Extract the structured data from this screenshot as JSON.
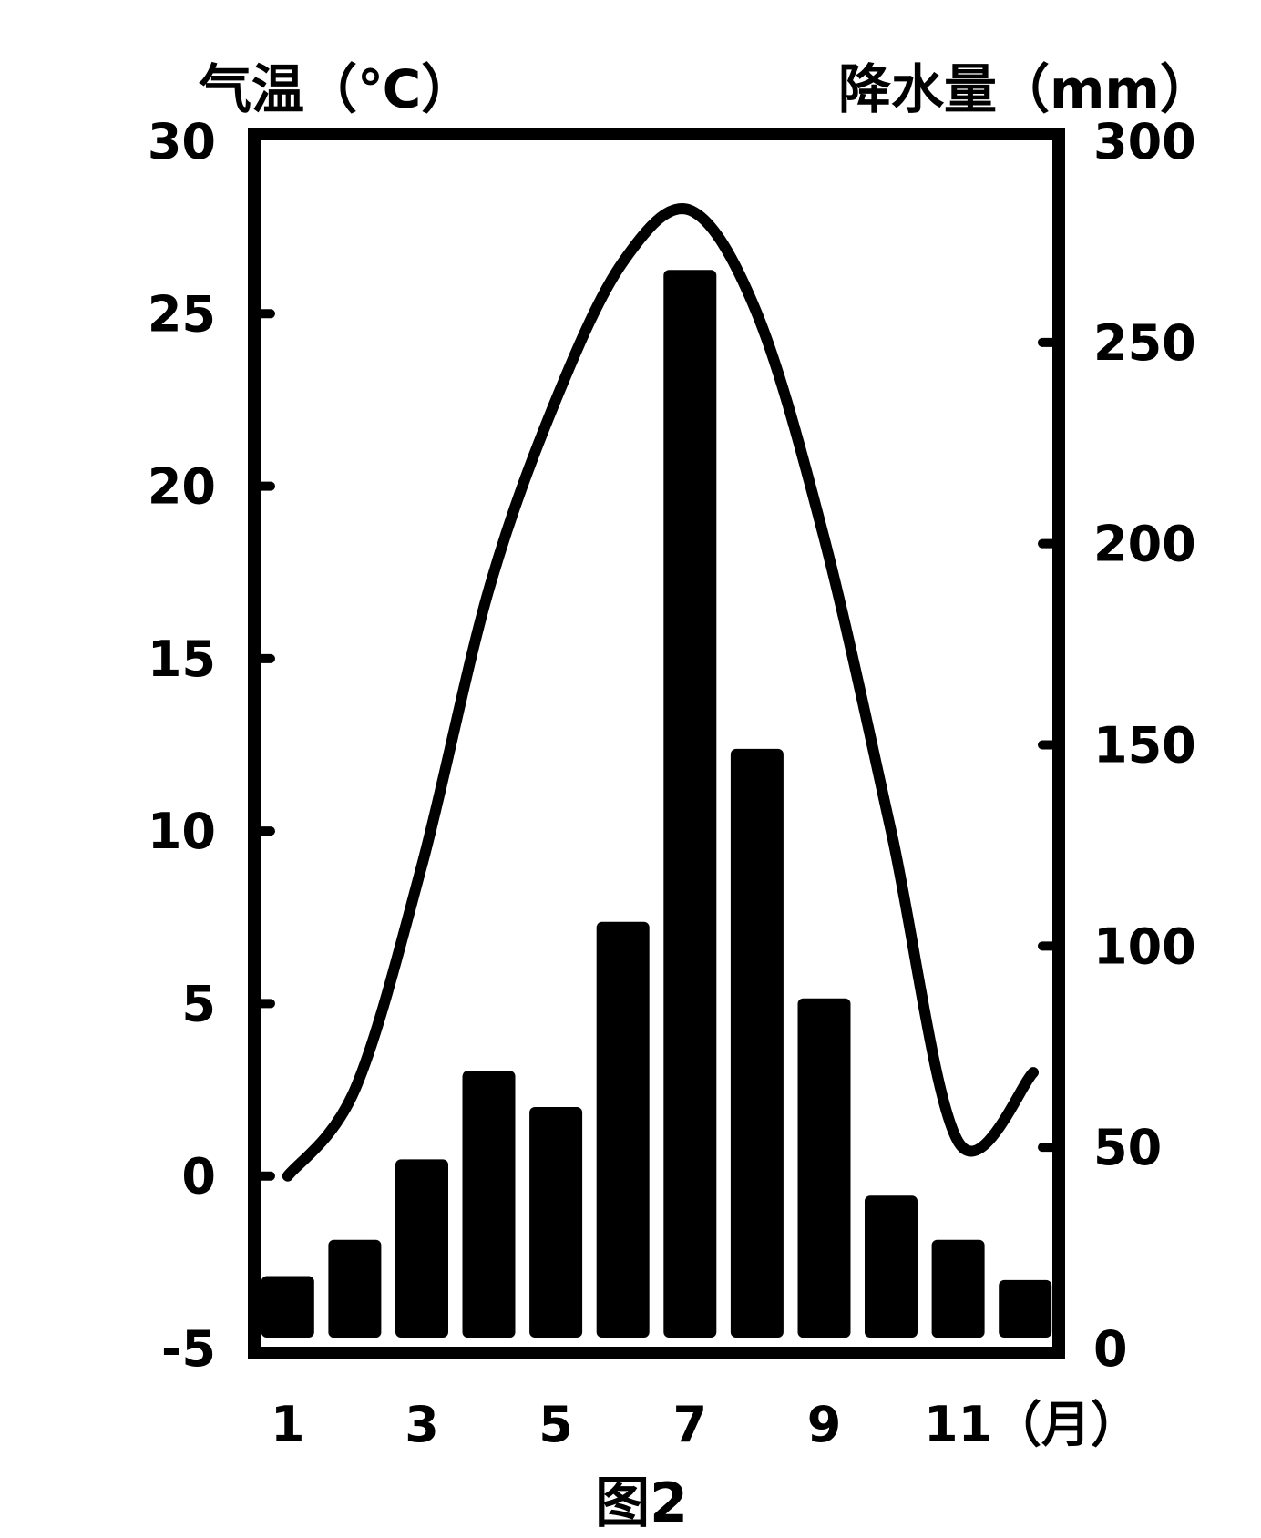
{
  "chart_data": {
    "type": "bar",
    "caption": "图2",
    "y_left_label": "气温（℃）",
    "y_right_label": "降水量（mm）",
    "x_unit_label": "（月）",
    "months": [
      1,
      2,
      3,
      4,
      5,
      6,
      7,
      8,
      9,
      10,
      11,
      12
    ],
    "x_tick_labels": [
      "1",
      "3",
      "5",
      "7",
      "9",
      "11"
    ],
    "x_tick_months": [
      1,
      3,
      5,
      7,
      9,
      11
    ],
    "y_left_ticks": [
      "30",
      "25",
      "20",
      "15",
      "10",
      "5",
      "0",
      "-5"
    ],
    "y_left_tick_values": [
      30,
      25,
      20,
      15,
      10,
      5,
      0,
      -5
    ],
    "y_left_lim": [
      -5,
      30
    ],
    "y_right_ticks": [
      "300",
      "250",
      "200",
      "150",
      "100",
      "50",
      "0"
    ],
    "y_right_tick_values": [
      300,
      250,
      200,
      150,
      100,
      50,
      0
    ],
    "y_right_lim": [
      0,
      300
    ],
    "series": [
      {
        "kind": "bar",
        "axis": "right",
        "values": [
          18,
          27,
          47,
          69,
          60,
          106,
          268,
          149,
          87,
          38,
          27,
          17
        ]
      },
      {
        "kind": "line",
        "axis": "left",
        "values": [
          0,
          2.5,
          9,
          17,
          22.5,
          26.5,
          28,
          25,
          18.5,
          10,
          1,
          null
        ],
        "end_value": 3
      }
    ]
  }
}
